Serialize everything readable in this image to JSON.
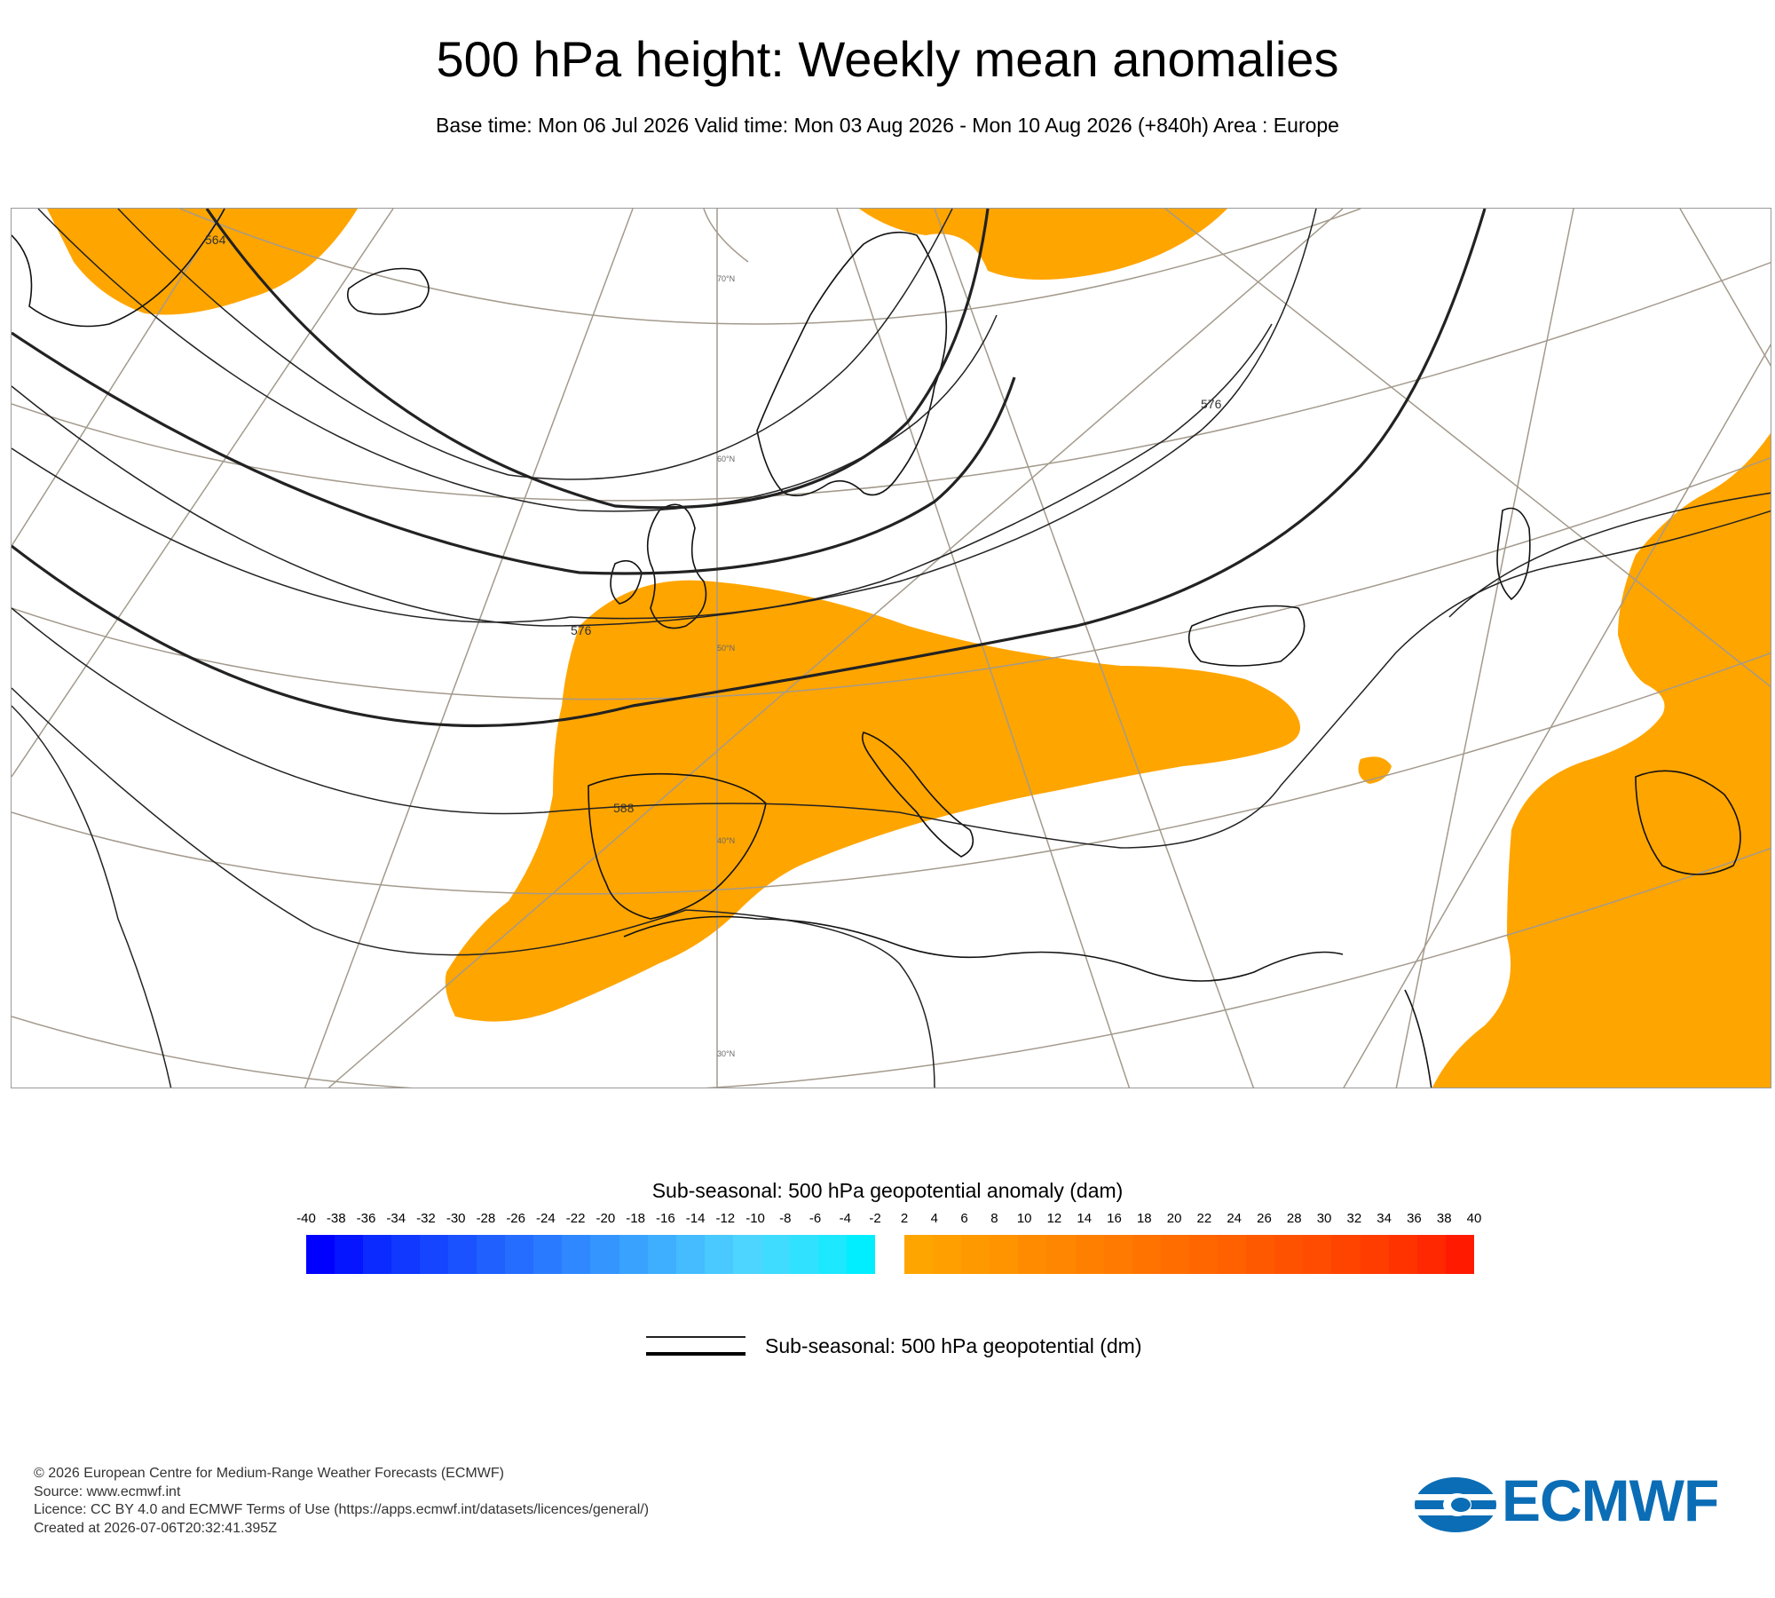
{
  "title": "500 hPa height: Weekly mean anomalies",
  "subtitle": "Base time: Mon 06 Jul 2026 Valid time: Mon 03 Aug 2026 - Mon 10 Aug 2026 (+840h) Area : Europe",
  "map": {
    "contour_labels": [
      "564",
      "576",
      "588",
      "576"
    ],
    "latitude_labels": [
      "70°N",
      "60°N",
      "50°N",
      "40°N",
      "30°N"
    ],
    "anomaly_color": "#ffa500"
  },
  "legend": {
    "title": "Sub-seasonal: 500 hPa geopotential anomaly (dam)",
    "ticks": [
      "-40",
      "-38",
      "-36",
      "-34",
      "-32",
      "-30",
      "-28",
      "-26",
      "-24",
      "-22",
      "-20",
      "-18",
      "-16",
      "-14",
      "-12",
      "-10",
      "-8",
      "-6",
      "-4",
      "-2",
      "2",
      "4",
      "6",
      "8",
      "10",
      "12",
      "14",
      "16",
      "18",
      "20",
      "22",
      "24",
      "26",
      "28",
      "30",
      "32",
      "34",
      "36",
      "38",
      "40"
    ],
    "negative_colors": [
      "#0000ff",
      "#0515ff",
      "#0a2aff",
      "#1038ff",
      "#1545ff",
      "#1a52ff",
      "#1f60ff",
      "#246dff",
      "#2a7aff",
      "#2f88ff",
      "#3495ff",
      "#39a2ff",
      "#3eafff",
      "#44bcff",
      "#49c9ff",
      "#4ed5ff",
      "#40dcff",
      "#30e2ff",
      "#1ce8ff",
      "#00eeff"
    ],
    "positive_colors": [
      "#ffa500",
      "#ff9f00",
      "#ff9900",
      "#ff9300",
      "#ff8c00",
      "#ff8600",
      "#ff8000",
      "#ff7a00",
      "#ff7300",
      "#ff6d00",
      "#ff6600",
      "#ff6000",
      "#ff5900",
      "#ff5200",
      "#ff4c00",
      "#ff4400",
      "#ff3d00",
      "#ff3300",
      "#ff2800",
      "#ff1a00"
    ],
    "line_label": "Sub-seasonal: 500 hPa geopotential (dm)"
  },
  "footer": {
    "line1": "© 2026 European Centre for Medium-Range Weather Forecasts (ECMWF)",
    "line2": "Source: www.ecmwf.int",
    "line3": "Licence: CC BY 4.0 and ECMWF Terms of Use (https://apps.ecmwf.int/datasets/licences/general/)",
    "line4": "Created at 2026-07-06T20:32:41.395Z"
  },
  "logo": {
    "text": "ECMWF",
    "color": "#0b6db5"
  }
}
